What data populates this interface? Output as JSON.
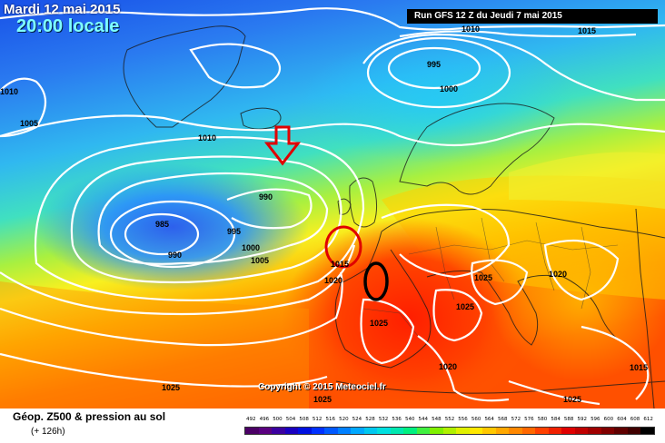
{
  "header": {
    "date": "Mardi 12 mai 2015",
    "hour": "20:00 locale",
    "run": "Run GFS 12 Z du Jeudi 7 mai 2015"
  },
  "copyright": "Copyright © 2015 Meteociel.fr",
  "footer": {
    "title": "Géop. Z500 & pression au sol",
    "subtitle": "(+ 126h)"
  },
  "isobar_labels": [
    "1010",
    "1015",
    "995",
    "1000",
    "1010",
    "1005",
    "1010",
    "990",
    "985",
    "995",
    "990",
    "1000",
    "1005",
    "1015",
    "1020",
    "1025",
    "1025",
    "1020",
    "1025",
    "1020",
    "1025",
    "1015",
    "1025",
    "1025"
  ],
  "scale": {
    "values": [
      "492",
      "496",
      "500",
      "504",
      "508",
      "512",
      "516",
      "520",
      "524",
      "528",
      "532",
      "536",
      "540",
      "544",
      "548",
      "552",
      "556",
      "560",
      "564",
      "568",
      "572",
      "576",
      "580",
      "584",
      "588",
      "592",
      "596",
      "600",
      "604",
      "608",
      "612"
    ],
    "colors": [
      "#4b0066",
      "#5a0080",
      "#3b00a0",
      "#1a00c0",
      "#0010e0",
      "#0030ff",
      "#0058ff",
      "#0080ff",
      "#00a8ff",
      "#00c8f0",
      "#00e0e0",
      "#00e8b0",
      "#00f080",
      "#40f040",
      "#80f000",
      "#b0f000",
      "#e0f000",
      "#ffe800",
      "#ffc800",
      "#ffa800",
      "#ff8800",
      "#ff6800",
      "#ff4000",
      "#f02000",
      "#e00000",
      "#c00000",
      "#a00000",
      "#800000",
      "#600000",
      "#400000",
      "#000000"
    ]
  },
  "annotations": {
    "arrow_color": "#e00000",
    "ellipse_red_color": "#e00000",
    "ellipse_black_color": "#000000"
  }
}
